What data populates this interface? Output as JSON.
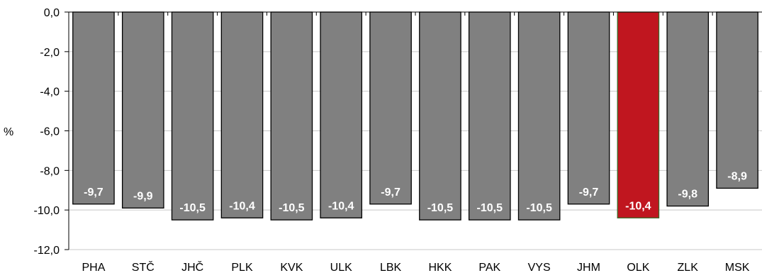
{
  "chart_data": {
    "type": "bar",
    "title": "",
    "xlabel": "",
    "ylabel": "%",
    "ylim": [
      -12,
      0
    ],
    "yticks": [
      0,
      -2,
      -4,
      -6,
      -8,
      -10,
      -12
    ],
    "ytick_labels": [
      "0,0",
      "-2,0",
      "-4,0",
      "-6,0",
      "-8,0",
      "-10,0",
      "-12,0"
    ],
    "grid": "horizontal",
    "categories": [
      "PHA",
      "STČ",
      "JHČ",
      "PLK",
      "KVK",
      "ULK",
      "LBK",
      "HKK",
      "PAK",
      "VYS",
      "JHM",
      "OLK",
      "ZLK",
      "MSK"
    ],
    "values": [
      -9.7,
      -9.9,
      -10.5,
      -10.4,
      -10.5,
      -10.4,
      -9.7,
      -10.5,
      -10.5,
      -10.5,
      -9.7,
      -10.4,
      -9.8,
      -8.9
    ],
    "data_labels": [
      "-9,7",
      "-9,9",
      "-10,5",
      "-10,4",
      "-10,5",
      "-10,4",
      "-9,7",
      "-10,5",
      "-10,5",
      "-10,5",
      "-9,7",
      "-10,4",
      "-9,8",
      "-8,9"
    ],
    "highlight_category": "OLK",
    "colors": {
      "bar": "#808080",
      "highlight": "#c0161f",
      "highlight_border": "#3a6b2a",
      "bar_border": "#000000",
      "grid": "#c8c8c8",
      "axis": "#000000",
      "label_text": "#ffffff"
    }
  }
}
